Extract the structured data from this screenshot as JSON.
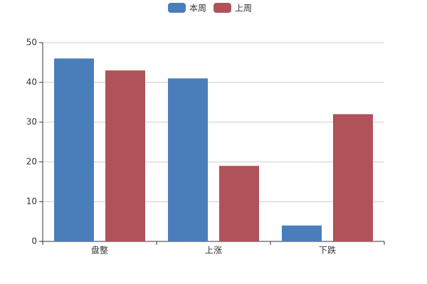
{
  "chart_data": {
    "type": "bar",
    "categories": [
      "盘整",
      "上涨",
      "下跌"
    ],
    "series": [
      {
        "name": "本周",
        "color": "#4a7ebb",
        "values": [
          46,
          41,
          4
        ]
      },
      {
        "name": "上周",
        "color": "#b0525a",
        "values": [
          43,
          19,
          32
        ]
      }
    ],
    "ylim": [
      0,
      50
    ],
    "yticks": [
      0,
      10,
      20,
      30,
      40,
      50
    ],
    "grid": true,
    "legend": "top"
  }
}
